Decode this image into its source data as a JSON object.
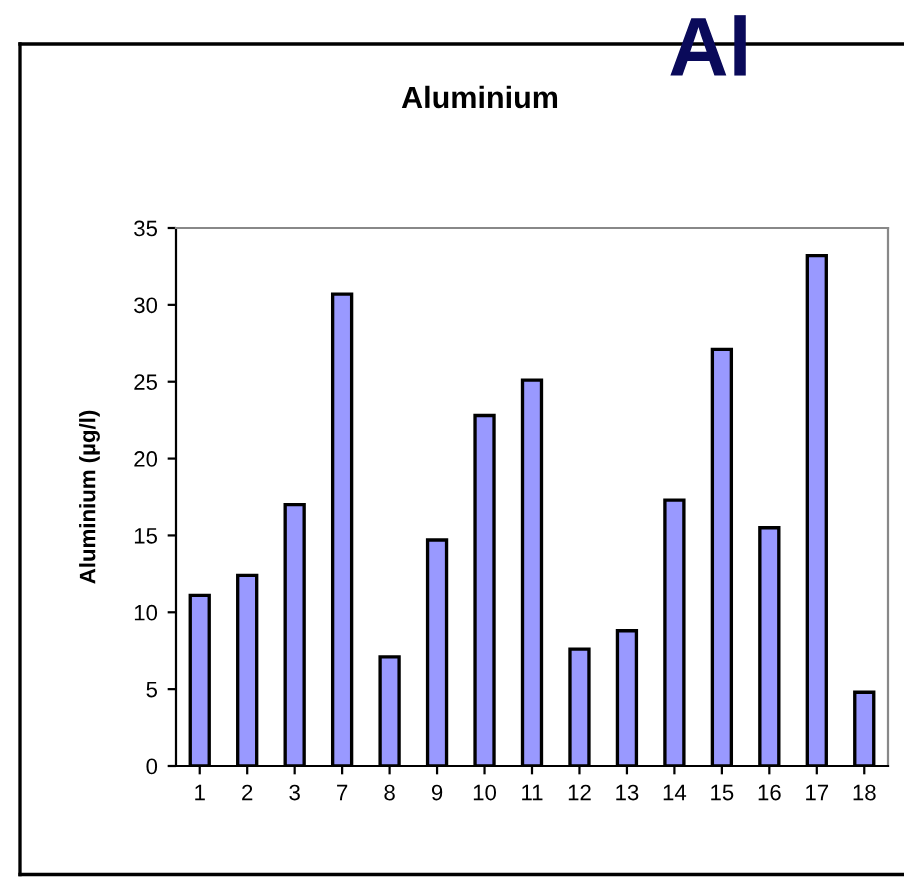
{
  "chart_data": {
    "type": "bar",
    "title": "Aluminium",
    "ylabel": "Aluminium (µg/l)",
    "annotations": [
      "Al"
    ],
    "categories": [
      "1",
      "2",
      "3",
      "7",
      "8",
      "9",
      "10",
      "11",
      "12",
      "13",
      "14",
      "15",
      "16",
      "17",
      "18"
    ],
    "values": [
      11.1,
      12.4,
      17.0,
      30.7,
      7.1,
      14.7,
      22.8,
      25.1,
      7.6,
      8.8,
      17.3,
      27.1,
      15.5,
      33.2,
      4.8
    ],
    "color": "#9999ff",
    "ylim": [
      0,
      35
    ],
    "yticks": [
      0,
      5,
      10,
      15,
      20,
      25,
      30,
      35
    ],
    "grid": false
  }
}
